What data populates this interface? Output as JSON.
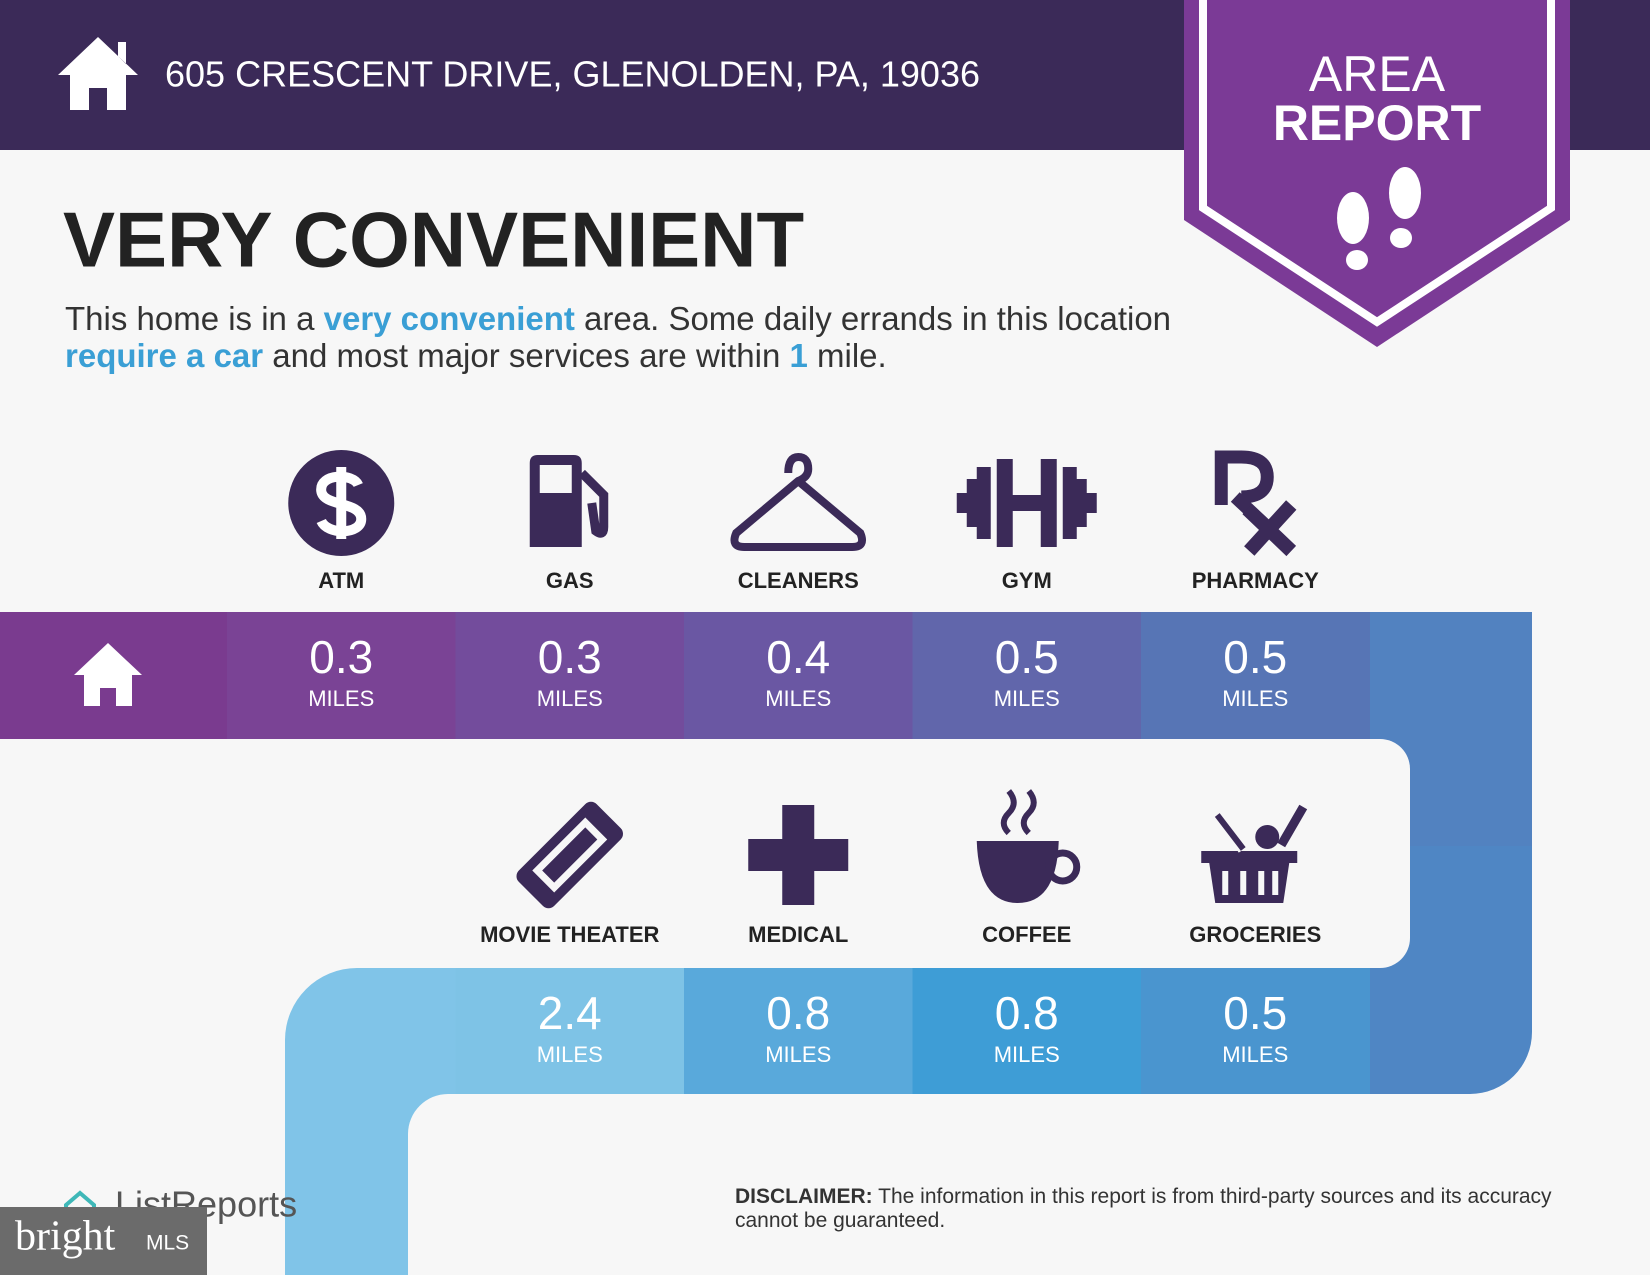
{
  "header": {
    "address": "605 CRESCENT DRIVE, GLENOLDEN, PA, 19036"
  },
  "badge": {
    "line1": "AREA",
    "line2": "REPORT"
  },
  "heading": "VERY CONVENIENT",
  "description": [
    {
      "text": "This home is in a ",
      "highlight": false
    },
    {
      "text": "very convenient",
      "highlight": true
    },
    {
      "text": " area. Some daily errands in this location ",
      "highlight": false
    },
    {
      "text": "require a car",
      "highlight": true
    },
    {
      "text": " and most major services are within ",
      "highlight": false
    },
    {
      "text": "1",
      "highlight": true
    },
    {
      "text": " mile.",
      "highlight": false
    }
  ],
  "unit": "MILES",
  "rows": [
    [
      {
        "label": "ATM",
        "distance": 0.3
      },
      {
        "label": "GAS",
        "distance": 0.3
      },
      {
        "label": "CLEANERS",
        "distance": 0.4
      },
      {
        "label": "GYM",
        "distance": 0.5
      },
      {
        "label": "PHARMACY",
        "distance": 0.5
      }
    ],
    [
      {
        "label": "MOVIE THEATER",
        "distance": 2.4
      },
      {
        "label": "MEDICAL",
        "distance": 0.8
      },
      {
        "label": "COFFEE",
        "distance": 0.8
      },
      {
        "label": "GROCERIES",
        "distance": 0.5
      }
    ]
  ],
  "disclaimer": {
    "label": "DISCLAIMER:",
    "text": " The information in this report is from third-party sources and its accuracy cannot be guaranteed."
  },
  "footer": {
    "listreports": "ListReports",
    "bright": "bright",
    "mls": "MLS"
  }
}
